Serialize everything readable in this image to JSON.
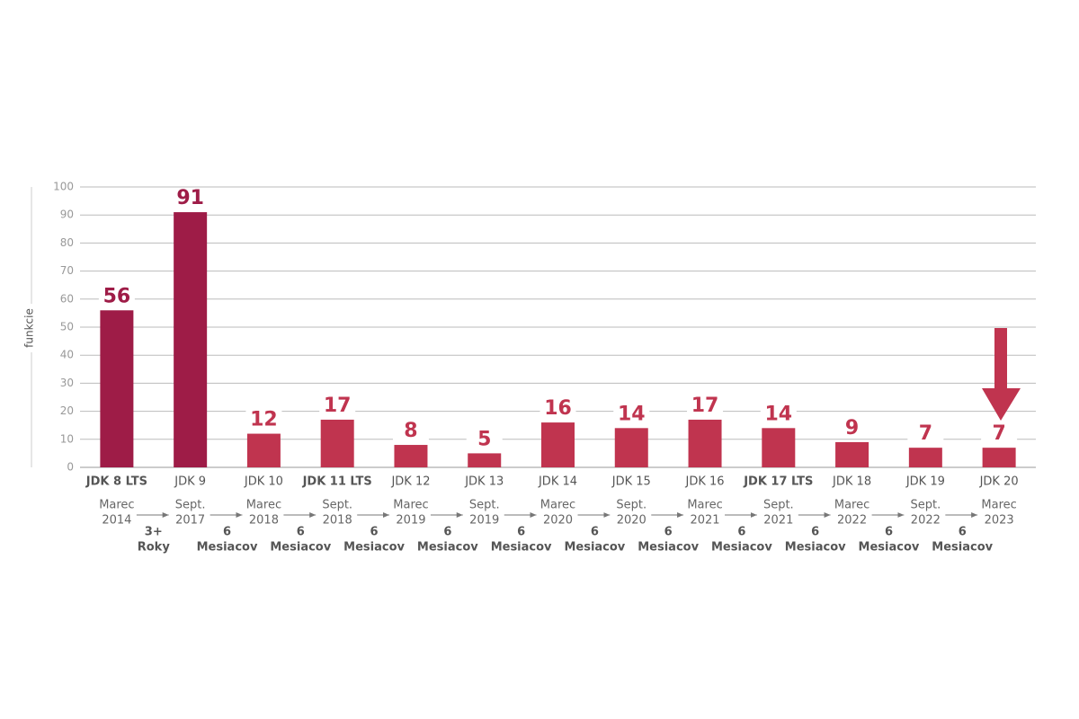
{
  "chart_data": {
    "type": "bar",
    "y_label": "funkcie",
    "categories": [
      "JDK 8 LTS",
      "JDK 9",
      "JDK 10",
      "JDK 11 LTS",
      "JDK 12",
      "JDK 13",
      "JDK 14",
      "JDK 15",
      "JDK 16",
      "JDK 17 LTS",
      "JDK 18",
      "JDK 19",
      "JDK 20"
    ],
    "bold_categories": [
      true,
      false,
      false,
      true,
      false,
      false,
      false,
      false,
      false,
      true,
      false,
      false,
      false
    ],
    "values": [
      56,
      91,
      12,
      17,
      8,
      5,
      16,
      14,
      17,
      14,
      9,
      7,
      7
    ],
    "colors": [
      "#9e1c47",
      "#9e1c47",
      "#c0344f",
      "#c0344f",
      "#c0344f",
      "#c0344f",
      "#c0344f",
      "#c0344f",
      "#c0344f",
      "#c0344f",
      "#c0344f",
      "#c0344f",
      "#c0344f"
    ],
    "release_dates": [
      [
        "Marec",
        "2014"
      ],
      [
        "Sept.",
        "2017"
      ],
      [
        "Marec",
        "2018"
      ],
      [
        "Sept.",
        "2018"
      ],
      [
        "Marec",
        "2019"
      ],
      [
        "Sept.",
        "2019"
      ],
      [
        "Marec",
        "2020"
      ],
      [
        "Sept.",
        "2020"
      ],
      [
        "Marec",
        "2021"
      ],
      [
        "Sept.",
        "2021"
      ],
      [
        "Marec",
        "2022"
      ],
      [
        "Sept.",
        "2022"
      ],
      [
        "Marec",
        "2023"
      ]
    ],
    "intervals": [
      [
        "3+",
        "Roky"
      ],
      [
        "6",
        "Mesiacov"
      ],
      [
        "6",
        "Mesiacov"
      ],
      [
        "6",
        "Mesiacov"
      ],
      [
        "6",
        "Mesiacov"
      ],
      [
        "6",
        "Mesiacov"
      ],
      [
        "6",
        "Mesiacov"
      ],
      [
        "6",
        "Mesiacov"
      ],
      [
        "6",
        "Mesiacov"
      ],
      [
        "6",
        "Mesiacov"
      ],
      [
        "6",
        "Mesiacov"
      ],
      [
        "6",
        "Mesiacov"
      ]
    ],
    "ylim": [
      0,
      100
    ],
    "yticks": [
      0,
      10,
      20,
      30,
      40,
      50,
      60,
      70,
      80,
      90,
      100
    ],
    "grid": true
  }
}
